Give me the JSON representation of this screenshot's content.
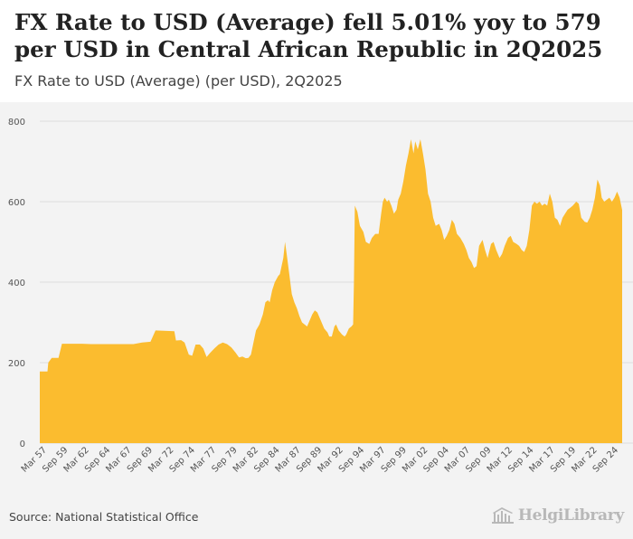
{
  "header": {
    "title": "FX Rate to USD (Average) fell 5.01% yoy to 579 per USD in Central African Republic in 2Q2025",
    "subtitle": "FX Rate to USD (Average) (per USD), 2Q2025"
  },
  "footer": {
    "source": "Source: National Statistical Office",
    "brand": "HelgiLibrary"
  },
  "colors": {
    "area": "#fbbc2f",
    "grid": "#dddddd",
    "axis_text": "#555555"
  },
  "icons": {
    "brand": "library-building-icon"
  },
  "chart_data": {
    "type": "area",
    "title": "FX Rate to USD (Average) (per USD), 2Q2025",
    "xlabel": "",
    "ylabel": "",
    "ylim": [
      0,
      800
    ],
    "yticks": [
      0,
      200,
      400,
      600,
      800
    ],
    "x_tick_labels": [
      "Mar 57",
      "Sep 59",
      "Mar 62",
      "Sep 64",
      "Mar 67",
      "Sep 69",
      "Mar 72",
      "Sep 74",
      "Mar 77",
      "Sep 79",
      "Mar 82",
      "Sep 84",
      "Mar 87",
      "Sep 89",
      "Mar 92",
      "Sep 94",
      "Mar 97",
      "Sep 99",
      "Mar 02",
      "Sep 04",
      "Mar 07",
      "Sep 09",
      "Mar 12",
      "Sep 14",
      "Mar 17",
      "Sep 19",
      "Mar 22",
      "Sep 24"
    ],
    "x_range": [
      1957.0,
      2025.4
    ],
    "series": [
      {
        "name": "FX Rate to USD (Average)",
        "points": [
          [
            1957.0,
            178
          ],
          [
            1957.9,
            178
          ],
          [
            1958.0,
            200
          ],
          [
            1958.4,
            212
          ],
          [
            1959.2,
            212
          ],
          [
            1959.6,
            247
          ],
          [
            1960.0,
            247
          ],
          [
            1962.0,
            247
          ],
          [
            1963.0,
            246
          ],
          [
            1966.0,
            246
          ],
          [
            1968.0,
            246
          ],
          [
            1969.0,
            250
          ],
          [
            1970.0,
            252
          ],
          [
            1970.6,
            280
          ],
          [
            1972.8,
            278
          ],
          [
            1973.0,
            255
          ],
          [
            1973.6,
            256
          ],
          [
            1974.0,
            250
          ],
          [
            1974.5,
            220
          ],
          [
            1974.9,
            217
          ],
          [
            1975.3,
            245
          ],
          [
            1975.8,
            245
          ],
          [
            1976.2,
            235
          ],
          [
            1976.6,
            214
          ],
          [
            1977.0,
            224
          ],
          [
            1977.5,
            235
          ],
          [
            1978.0,
            245
          ],
          [
            1978.5,
            250
          ],
          [
            1979.0,
            246
          ],
          [
            1979.5,
            238
          ],
          [
            1980.0,
            225
          ],
          [
            1980.4,
            213
          ],
          [
            1980.8,
            215
          ],
          [
            1981.2,
            211
          ],
          [
            1981.5,
            212
          ],
          [
            1981.8,
            220
          ],
          [
            1982.1,
            250
          ],
          [
            1982.4,
            280
          ],
          [
            1982.8,
            295
          ],
          [
            1983.2,
            320
          ],
          [
            1983.5,
            350
          ],
          [
            1983.8,
            355
          ],
          [
            1984.0,
            350
          ],
          [
            1984.3,
            380
          ],
          [
            1984.6,
            400
          ],
          [
            1985.0,
            415
          ],
          [
            1985.2,
            420
          ],
          [
            1985.6,
            460
          ],
          [
            1985.8,
            500
          ],
          [
            1986.0,
            470
          ],
          [
            1986.3,
            420
          ],
          [
            1986.6,
            370
          ],
          [
            1986.9,
            350
          ],
          [
            1987.2,
            335
          ],
          [
            1987.5,
            315
          ],
          [
            1987.8,
            300
          ],
          [
            1988.1,
            295
          ],
          [
            1988.4,
            290
          ],
          [
            1988.7,
            305
          ],
          [
            1989.0,
            320
          ],
          [
            1989.3,
            330
          ],
          [
            1989.6,
            325
          ],
          [
            1990.0,
            305
          ],
          [
            1990.4,
            285
          ],
          [
            1990.8,
            275
          ],
          [
            1991.0,
            265
          ],
          [
            1991.3,
            265
          ],
          [
            1991.6,
            290
          ],
          [
            1991.8,
            295
          ],
          [
            1992.1,
            280
          ],
          [
            1992.5,
            270
          ],
          [
            1992.8,
            265
          ],
          [
            1993.0,
            270
          ],
          [
            1993.3,
            285
          ],
          [
            1993.6,
            290
          ],
          [
            1993.8,
            295
          ],
          [
            1993.9,
            400
          ],
          [
            1994.0,
            590
          ],
          [
            1994.3,
            575
          ],
          [
            1994.6,
            540
          ],
          [
            1995.0,
            525
          ],
          [
            1995.3,
            500
          ],
          [
            1995.7,
            495
          ],
          [
            1996.0,
            510
          ],
          [
            1996.4,
            520
          ],
          [
            1996.8,
            520
          ],
          [
            1997.1,
            570
          ],
          [
            1997.3,
            600
          ],
          [
            1997.5,
            610
          ],
          [
            1997.8,
            600
          ],
          [
            1998.0,
            605
          ],
          [
            1998.3,
            590
          ],
          [
            1998.6,
            570
          ],
          [
            1998.9,
            580
          ],
          [
            1999.1,
            605
          ],
          [
            1999.4,
            620
          ],
          [
            1999.7,
            650
          ],
          [
            2000.0,
            690
          ],
          [
            2000.3,
            720
          ],
          [
            2000.6,
            755
          ],
          [
            2000.9,
            720
          ],
          [
            2001.1,
            750
          ],
          [
            2001.4,
            730
          ],
          [
            2001.7,
            755
          ],
          [
            2002.0,
            720
          ],
          [
            2002.3,
            680
          ],
          [
            2002.6,
            620
          ],
          [
            2002.9,
            600
          ],
          [
            2003.2,
            560
          ],
          [
            2003.5,
            540
          ],
          [
            2003.9,
            545
          ],
          [
            2004.2,
            530
          ],
          [
            2004.5,
            505
          ],
          [
            2004.8,
            515
          ],
          [
            2005.1,
            530
          ],
          [
            2005.4,
            555
          ],
          [
            2005.7,
            545
          ],
          [
            2006.0,
            520
          ],
          [
            2006.4,
            510
          ],
          [
            2006.8,
            495
          ],
          [
            2007.1,
            480
          ],
          [
            2007.4,
            460
          ],
          [
            2007.7,
            450
          ],
          [
            2008.0,
            435
          ],
          [
            2008.3,
            440
          ],
          [
            2008.6,
            490
          ],
          [
            2009.0,
            505
          ],
          [
            2009.3,
            480
          ],
          [
            2009.6,
            460
          ],
          [
            2010.0,
            495
          ],
          [
            2010.3,
            500
          ],
          [
            2010.6,
            480
          ],
          [
            2011.0,
            460
          ],
          [
            2011.3,
            470
          ],
          [
            2011.6,
            490
          ],
          [
            2012.0,
            510
          ],
          [
            2012.3,
            515
          ],
          [
            2012.6,
            500
          ],
          [
            2013.0,
            495
          ],
          [
            2013.3,
            490
          ],
          [
            2013.6,
            480
          ],
          [
            2013.9,
            475
          ],
          [
            2014.2,
            490
          ],
          [
            2014.5,
            530
          ],
          [
            2014.8,
            590
          ],
          [
            2015.1,
            600
          ],
          [
            2015.4,
            595
          ],
          [
            2015.7,
            600
          ],
          [
            2016.0,
            590
          ],
          [
            2016.3,
            595
          ],
          [
            2016.6,
            590
          ],
          [
            2016.9,
            620
          ],
          [
            2017.2,
            600
          ],
          [
            2017.5,
            560
          ],
          [
            2017.8,
            555
          ],
          [
            2018.1,
            540
          ],
          [
            2018.4,
            560
          ],
          [
            2018.7,
            570
          ],
          [
            2019.0,
            580
          ],
          [
            2019.3,
            585
          ],
          [
            2019.6,
            590
          ],
          [
            2020.0,
            600
          ],
          [
            2020.3,
            595
          ],
          [
            2020.6,
            560
          ],
          [
            2021.0,
            550
          ],
          [
            2021.3,
            548
          ],
          [
            2021.6,
            560
          ],
          [
            2021.9,
            580
          ],
          [
            2022.2,
            610
          ],
          [
            2022.5,
            655
          ],
          [
            2022.8,
            640
          ],
          [
            2023.0,
            610
          ],
          [
            2023.3,
            600
          ],
          [
            2023.6,
            605
          ],
          [
            2023.9,
            610
          ],
          [
            2024.2,
            600
          ],
          [
            2024.5,
            610
          ],
          [
            2024.8,
            625
          ],
          [
            2025.1,
            610
          ],
          [
            2025.4,
            579
          ]
        ]
      }
    ]
  }
}
